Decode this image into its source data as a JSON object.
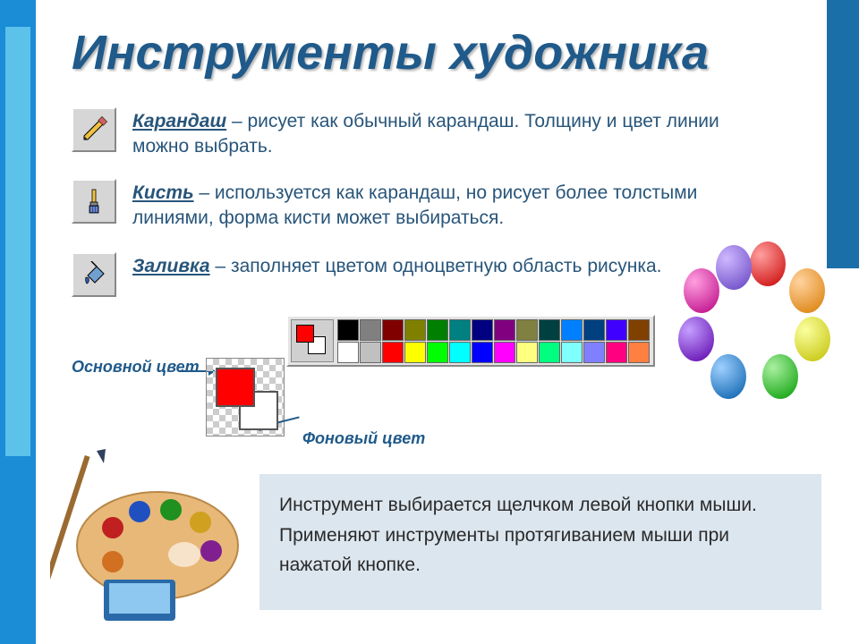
{
  "title": "Инструменты художника",
  "tools": {
    "pencil": {
      "name": "Карандаш",
      "desc": " – рисует как обычный карандаш. Толщину и цвет линии можно выбрать."
    },
    "brush": {
      "name": "Кисть",
      "desc": " – используется как карандаш, но рисует более толстыми линиями, форма кисти может выбираться."
    },
    "fill": {
      "name": "Заливка",
      "desc": " – заполняет цветом одноцветную область рисунка."
    }
  },
  "labels": {
    "primary": "Основной цвет",
    "background": "Фоновый цвет"
  },
  "color_indicator": {
    "fg": "#ff0000",
    "bg": "#ffffff"
  },
  "palette": {
    "row1": [
      "#000000",
      "#808080",
      "#800000",
      "#808000",
      "#008000",
      "#008080",
      "#000080",
      "#800080",
      "#808040",
      "#004040",
      "#0080ff",
      "#004080",
      "#4000ff",
      "#804000"
    ],
    "row2": [
      "#ffffff",
      "#c0c0c0",
      "#ff0000",
      "#ffff00",
      "#00ff00",
      "#00ffff",
      "#0000ff",
      "#ff00ff",
      "#ffff80",
      "#00ff80",
      "#80ffff",
      "#8080ff",
      "#ff0080",
      "#ff8040"
    ]
  },
  "instructions": {
    "line1": "Инструмент выбирается щелчком левой кнопки мыши.",
    "line2": "Применяют инструменты протягиванием мыши при нажатой кнопке."
  },
  "styling": {
    "title_color": "#1f5a8a",
    "title_fontsize": 54,
    "text_color": "#28557a",
    "text_fontsize": 21,
    "stripe_left": "#1b8cd6",
    "stripe_left_inner": "#5cc2ea",
    "stripe_right": "#1b6fa8",
    "instruction_bg": "#dce6ee",
    "tool_button_bg": "#d6d6d6"
  },
  "balloon_colors": [
    "#c80000",
    "#d87a00",
    "#c0c000",
    "#009a00",
    "#005aa8",
    "#5a00a8",
    "#b80080",
    "#6040c0"
  ]
}
